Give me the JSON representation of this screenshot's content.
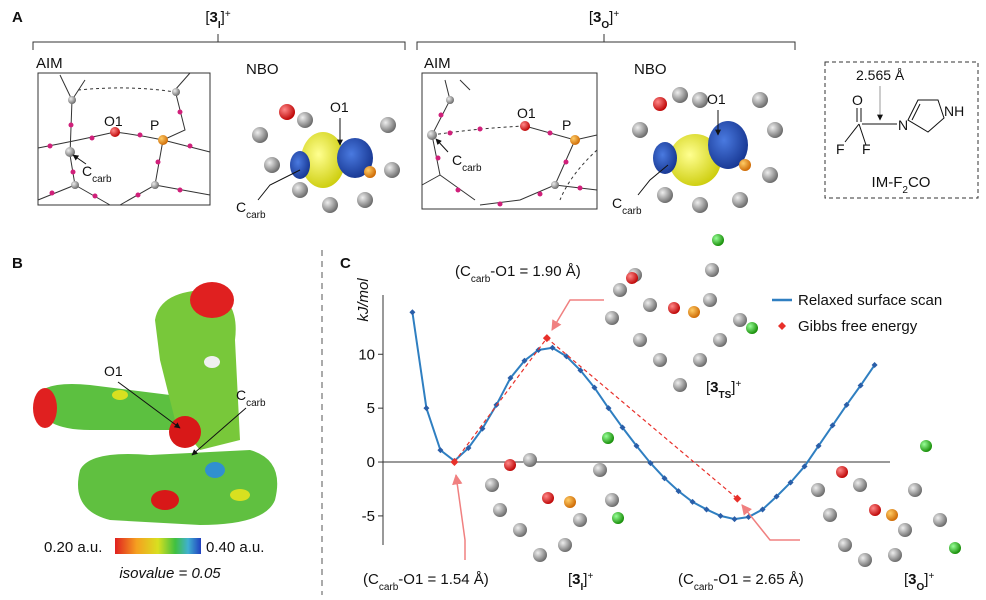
{
  "panel_a": {
    "label": "A",
    "left_title": [
      "[",
      "3",
      "I",
      "]",
      "+"
    ],
    "right_title": [
      "[",
      "3",
      "O",
      "]",
      "+"
    ],
    "aim_left": "AIM",
    "nbo_left": "NBO",
    "aim_right": "AIM",
    "nbo_right": "NBO",
    "aim_left_o1": "O1",
    "aim_left_p": "P",
    "aim_left_ccarb": [
      "C",
      "carb"
    ],
    "nbo_left_o1": "O1",
    "nbo_left_ccarb": [
      "C",
      "carb"
    ],
    "aim_right_o1": "O1",
    "aim_right_p": "P",
    "aim_right_ccarb": [
      "C",
      "carb"
    ],
    "nbo_right_o1": "O1",
    "nbo_right_ccarb": [
      "C",
      "carb"
    ],
    "im_distance": "2.565 Å",
    "im_o": "O",
    "im_f1": "F",
    "im_f2": "F",
    "im_n": "N",
    "im_nh": "NH",
    "im_label": [
      "IM-F",
      "2",
      "CO"
    ]
  },
  "panel_b": {
    "label": "B",
    "o1": "O1",
    "ccarb": [
      "C",
      "carb"
    ],
    "scale_min": "0.20 a.u.",
    "scale_max": "0.40 a.u.",
    "isovalue": "isovalue = 0.05"
  },
  "panel_c": {
    "label": "C",
    "chart_data": {
      "type": "line",
      "y_label": "kJ/mol",
      "xlim": [
        -2.1,
        34.1
      ],
      "ylim": [
        -7.7,
        15.5
      ],
      "yticks": [
        -5,
        0,
        5,
        10
      ],
      "series": [
        {
          "name": "Relaxed surface scan",
          "color": "#2f7fc1",
          "marker_color": "#2a5ea8",
          "line_style": "solid",
          "marker": "diamond",
          "x": [
            0,
            1,
            2,
            3,
            4,
            5,
            6,
            7,
            8,
            9,
            10,
            11,
            12,
            13,
            14,
            15,
            16,
            17,
            18,
            19,
            20,
            21,
            22,
            23,
            24,
            25,
            26,
            27,
            28,
            29,
            30,
            31,
            32,
            33
          ],
          "values": [
            13.9,
            5.0,
            1.1,
            0.1,
            1.3,
            3.1,
            5.3,
            7.8,
            9.4,
            10.4,
            10.6,
            9.8,
            8.5,
            6.9,
            5.0,
            3.2,
            1.5,
            -0.1,
            -1.5,
            -2.7,
            -3.7,
            -4.4,
            -5.0,
            -5.3,
            -5.1,
            -4.4,
            -3.2,
            -1.9,
            -0.4,
            1.5,
            3.4,
            5.3,
            7.1,
            9.0
          ]
        },
        {
          "name": "Gibbs free energy",
          "color": "#e8302a",
          "marker_color": "#e8302a",
          "line_style": "dashed",
          "marker": "diamond",
          "x": [
            3,
            9.6,
            23.2
          ],
          "values": [
            0,
            11.5,
            -3.4
          ]
        }
      ],
      "annotations": [
        [
          "(C",
          "carb",
          "-O1 = 1.90 Å)"
        ],
        [
          "(C",
          "carb",
          "-O1 = 1.54 Å)"
        ],
        [
          "(C",
          "carb",
          "-O1 = 2.65 Å)"
        ]
      ],
      "structure_labels": [
        [
          "[",
          "3",
          "TS",
          "]",
          "+"
        ],
        [
          "[",
          "3",
          "I",
          "]",
          "+"
        ],
        [
          "[",
          "3",
          "O",
          "]",
          "+"
        ]
      ]
    }
  }
}
